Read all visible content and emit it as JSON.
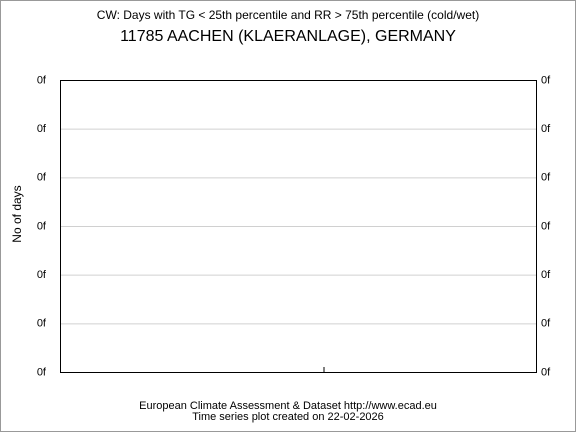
{
  "chart_data": {
    "type": "line",
    "title": "CW: Days with TG < 25th percentile and RR > 75th percentile (cold/wet)",
    "subtitle": "11785 AACHEN (KLAERANLAGE), GERMANY",
    "ylabel": "No of days",
    "footer": [
      "European Climate Assessment & Dataset  http://www.ecad.eu",
      "Time series plot created on 22-02-2026"
    ],
    "ylim": [
      0,
      6
    ],
    "yticks": [
      {
        "value": 0,
        "label": "0f"
      },
      {
        "value": 1,
        "label": "0f"
      },
      {
        "value": 2,
        "label": "0f"
      },
      {
        "value": 3,
        "label": "0f"
      },
      {
        "value": 4,
        "label": "0f"
      },
      {
        "value": 5,
        "label": "0f"
      },
      {
        "value": 6,
        "label": "0f"
      }
    ],
    "grid": true,
    "series": []
  }
}
